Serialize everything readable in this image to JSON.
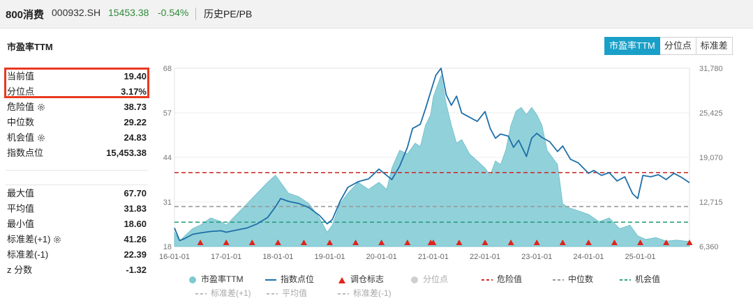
{
  "header": {
    "name": "800消费",
    "code": "000932.SH",
    "price": "15453.38",
    "change": "-0.54%",
    "history_label": "历史PE/PB"
  },
  "section_title": "市盈率TTM",
  "tabs": [
    {
      "label": "市盈率TTM",
      "active": true
    },
    {
      "label": "分位点",
      "active": false
    },
    {
      "label": "标准差",
      "active": false
    }
  ],
  "stats_top": [
    {
      "label": "当前值",
      "value": "19.40",
      "gear": false
    },
    {
      "label": "分位点",
      "value": "3.17%",
      "gear": false
    },
    {
      "label": "危险值",
      "value": "38.73",
      "gear": true
    },
    {
      "label": "中位数",
      "value": "29.22",
      "gear": false
    },
    {
      "label": "机会值",
      "value": "24.83",
      "gear": true
    },
    {
      "label": "指数点位",
      "value": "15,453.38",
      "gear": false
    }
  ],
  "stats_bottom": [
    {
      "label": "最大值",
      "value": "67.70",
      "gear": false
    },
    {
      "label": "平均值",
      "value": "31.83",
      "gear": false
    },
    {
      "label": "最小值",
      "value": "18.60",
      "gear": false
    },
    {
      "label": "标准差(+1)",
      "value": "41.26",
      "gear": true
    },
    {
      "label": "标准差(-1)",
      "value": "22.39",
      "gear": false
    },
    {
      "label": "z 分数",
      "value": "-1.32",
      "gear": false
    }
  ],
  "chart_data": {
    "type": "area",
    "x_ticks": [
      "16-01-01",
      "17-01-01",
      "18-01-01",
      "19-01-01",
      "20-01-01",
      "21-01-01",
      "22-01-01",
      "23-01-01",
      "24-01-01",
      "25-01-01"
    ],
    "y_left": {
      "ticks": [
        "68",
        "57",
        "44",
        "31",
        "18"
      ],
      "range": [
        18,
        68
      ]
    },
    "y_right": {
      "ticks": [
        "31,780",
        "25,425",
        "19,070",
        "12,715",
        "6,360"
      ],
      "range": [
        6360,
        31780
      ]
    },
    "x_range": [
      2016.0,
      2025.95
    ],
    "pe_series": {
      "name": "市盈率TTM",
      "color": "#7ec9d3",
      "points": [
        [
          2016.0,
          22
        ],
        [
          2016.1,
          19.5
        ],
        [
          2016.2,
          21
        ],
        [
          2016.35,
          23
        ],
        [
          2016.5,
          24
        ],
        [
          2016.7,
          26
        ],
        [
          2016.9,
          25
        ],
        [
          2017.0,
          24
        ],
        [
          2017.2,
          27
        ],
        [
          2017.4,
          30
        ],
        [
          2017.6,
          33
        ],
        [
          2017.8,
          36
        ],
        [
          2017.95,
          38
        ],
        [
          2018.05,
          36
        ],
        [
          2018.2,
          33
        ],
        [
          2018.4,
          32
        ],
        [
          2018.6,
          30
        ],
        [
          2018.8,
          26
        ],
        [
          2018.95,
          22
        ],
        [
          2019.05,
          24
        ],
        [
          2019.2,
          30
        ],
        [
          2019.35,
          33
        ],
        [
          2019.55,
          36
        ],
        [
          2019.75,
          34
        ],
        [
          2019.95,
          36
        ],
        [
          2020.1,
          34
        ],
        [
          2020.2,
          40
        ],
        [
          2020.35,
          45
        ],
        [
          2020.5,
          44
        ],
        [
          2020.65,
          47
        ],
        [
          2020.75,
          46
        ],
        [
          2020.85,
          52
        ],
        [
          2020.95,
          55
        ],
        [
          2021.0,
          60
        ],
        [
          2021.1,
          64
        ],
        [
          2021.15,
          66
        ],
        [
          2021.25,
          58
        ],
        [
          2021.35,
          52
        ],
        [
          2021.45,
          47
        ],
        [
          2021.55,
          48
        ],
        [
          2021.7,
          44
        ],
        [
          2021.85,
          42
        ],
        [
          2022.0,
          40
        ],
        [
          2022.1,
          38
        ],
        [
          2022.2,
          42
        ],
        [
          2022.3,
          41
        ],
        [
          2022.4,
          45
        ],
        [
          2022.5,
          52
        ],
        [
          2022.6,
          56
        ],
        [
          2022.7,
          57
        ],
        [
          2022.8,
          55
        ],
        [
          2022.9,
          57
        ],
        [
          2023.0,
          55
        ],
        [
          2023.1,
          52
        ],
        [
          2023.2,
          45
        ],
        [
          2023.3,
          43
        ],
        [
          2023.4,
          41
        ],
        [
          2023.5,
          30
        ],
        [
          2023.6,
          29
        ],
        [
          2023.8,
          28
        ],
        [
          2024.0,
          27
        ],
        [
          2024.2,
          25
        ],
        [
          2024.4,
          26
        ],
        [
          2024.6,
          23
        ],
        [
          2024.8,
          24
        ],
        [
          2024.95,
          21
        ],
        [
          2025.1,
          20
        ],
        [
          2025.3,
          20.5
        ],
        [
          2025.5,
          19.5
        ],
        [
          2025.7,
          19.8
        ],
        [
          2025.95,
          19.4
        ]
      ]
    },
    "index_series": {
      "name": "指数点位",
      "color": "#1e6fa8",
      "points": [
        [
          2016.0,
          9000
        ],
        [
          2016.1,
          7200
        ],
        [
          2016.2,
          7500
        ],
        [
          2016.35,
          8100
        ],
        [
          2016.5,
          8300
        ],
        [
          2016.7,
          8500
        ],
        [
          2016.9,
          8600
        ],
        [
          2017.0,
          8400
        ],
        [
          2017.2,
          8700
        ],
        [
          2017.4,
          9000
        ],
        [
          2017.6,
          9600
        ],
        [
          2017.8,
          10500
        ],
        [
          2017.95,
          12000
        ],
        [
          2018.05,
          13200
        ],
        [
          2018.2,
          12800
        ],
        [
          2018.4,
          12500
        ],
        [
          2018.6,
          11900
        ],
        [
          2018.8,
          10800
        ],
        [
          2018.95,
          9600
        ],
        [
          2019.05,
          10200
        ],
        [
          2019.2,
          12800
        ],
        [
          2019.35,
          14800
        ],
        [
          2019.55,
          15600
        ],
        [
          2019.75,
          16000
        ],
        [
          2019.95,
          17400
        ],
        [
          2020.1,
          16500
        ],
        [
          2020.2,
          15900
        ],
        [
          2020.35,
          17800
        ],
        [
          2020.5,
          20500
        ],
        [
          2020.6,
          23200
        ],
        [
          2020.75,
          23800
        ],
        [
          2020.85,
          26000
        ],
        [
          2020.95,
          28400
        ],
        [
          2021.05,
          30800
        ],
        [
          2021.15,
          31780
        ],
        [
          2021.25,
          28000
        ],
        [
          2021.35,
          26500
        ],
        [
          2021.45,
          27800
        ],
        [
          2021.55,
          25400
        ],
        [
          2021.7,
          24800
        ],
        [
          2021.85,
          24200
        ],
        [
          2022.0,
          25600
        ],
        [
          2022.1,
          23200
        ],
        [
          2022.2,
          21800
        ],
        [
          2022.3,
          22400
        ],
        [
          2022.45,
          22100
        ],
        [
          2022.55,
          20500
        ],
        [
          2022.65,
          21500
        ],
        [
          2022.8,
          19200
        ],
        [
          2022.9,
          21800
        ],
        [
          2023.0,
          22500
        ],
        [
          2023.1,
          21900
        ],
        [
          2023.25,
          21300
        ],
        [
          2023.4,
          19900
        ],
        [
          2023.5,
          20700
        ],
        [
          2023.65,
          18800
        ],
        [
          2023.8,
          18300
        ],
        [
          2024.0,
          16800
        ],
        [
          2024.1,
          17200
        ],
        [
          2024.25,
          16500
        ],
        [
          2024.4,
          16900
        ],
        [
          2024.55,
          15700
        ],
        [
          2024.7,
          16300
        ],
        [
          2024.85,
          13900
        ],
        [
          2024.95,
          13200
        ],
        [
          2025.05,
          16500
        ],
        [
          2025.2,
          16300
        ],
        [
          2025.35,
          16600
        ],
        [
          2025.5,
          15900
        ],
        [
          2025.65,
          16800
        ],
        [
          2025.8,
          16200
        ],
        [
          2025.95,
          15453
        ]
      ]
    },
    "reference_lines": [
      {
        "name": "危险值",
        "value": 38.73,
        "color": "#c8322d"
      },
      {
        "name": "中位数",
        "value": 29.22,
        "color": "#999999"
      },
      {
        "name": "机会值",
        "value": 24.83,
        "color": "#2aa07a"
      }
    ],
    "rebalance_markers": {
      "name": "调仓标志",
      "color": "#e0241b",
      "x": [
        2016.5,
        2017.0,
        2017.5,
        2018.0,
        2018.5,
        2019.0,
        2019.5,
        2020.0,
        2020.5,
        2020.95,
        2021.0,
        2021.5,
        2022.0,
        2022.5,
        2023.0,
        2023.5,
        2024.0,
        2024.5,
        2025.0,
        2025.5,
        2025.95
      ]
    },
    "legend": {
      "row1": [
        "市盈率TTM",
        "指数点位",
        "调仓标志",
        "分位点",
        "危险值",
        "中位数",
        "机会值"
      ],
      "row2": [
        "标准差(+1)",
        "平均值",
        "标准差(-1)"
      ]
    }
  }
}
